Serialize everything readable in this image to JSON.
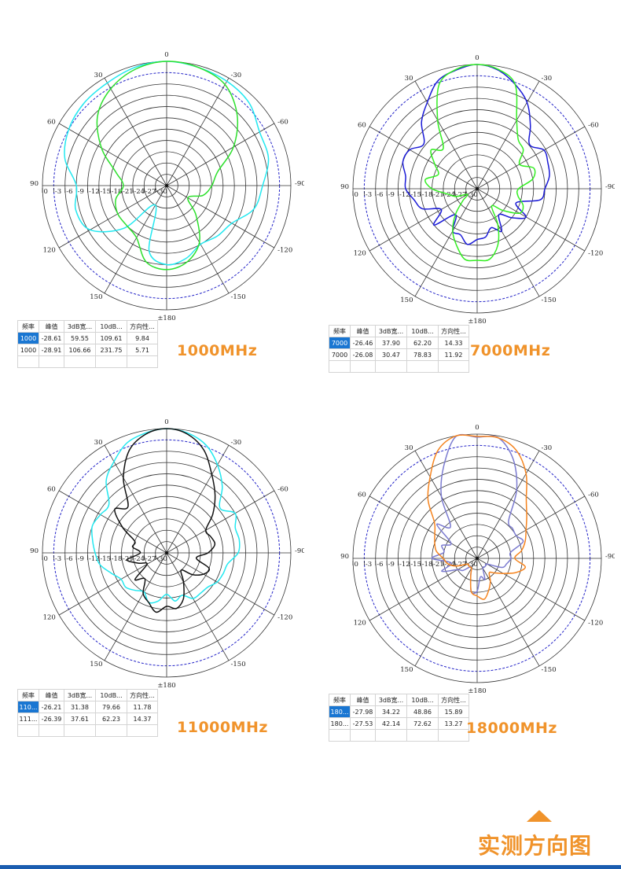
{
  "colors": {
    "accent": "#f0932b",
    "bar": "#1a5db0",
    "grid": "#333333",
    "grid_ref": "#2424c8",
    "selected_cell": "#1976d2"
  },
  "chart_data": [
    {
      "type": "polar",
      "title": "1000MHz",
      "rlim": [
        -33,
        0
      ],
      "angle_step": 15,
      "angle_ticks": [
        0,
        30,
        60,
        90,
        120,
        150,
        180,
        -150,
        -120,
        -90,
        -60,
        -30
      ],
      "angle_labels": [
        "0",
        "30",
        "60",
        "90",
        "120",
        "150",
        "±180",
        "-150",
        "-120",
        "-90",
        "-60",
        "-30"
      ],
      "radial_ticks": [
        0,
        -3,
        -6,
        -9,
        -12,
        -15,
        -18,
        -21,
        -24,
        -27,
        -30
      ],
      "radial_labels": [
        "0",
        "-3",
        "-6",
        "-9",
        "-12",
        "-15",
        "-18",
        "-21",
        "-24",
        "-27",
        "-30"
      ],
      "series": [
        {
          "color": "#22e8f0",
          "values": [
            0,
            -0.5,
            -1.5,
            -2,
            -3,
            -5,
            -9,
            -8,
            -9.5,
            -17,
            -27,
            -15,
            -12,
            -13,
            -15,
            -14,
            -13,
            -9,
            -7.5,
            -5,
            -4.5,
            -2,
            -1,
            -0.5
          ]
        },
        {
          "color": "#2de02d",
          "values": [
            0,
            -1,
            -3.3,
            -7,
            -13,
            -19,
            -21.5,
            -19,
            -18,
            -18,
            -17,
            -12,
            -10.7,
            -12,
            -15.6,
            -22,
            -26.5,
            -23,
            -21,
            -19,
            -12.5,
            -6.5,
            -2,
            -0.5
          ]
        }
      ]
    },
    {
      "type": "polar",
      "title": "7000MHz",
      "rlim": [
        -33,
        0
      ],
      "angle_step": 10,
      "angle_ticks": [
        0,
        30,
        60,
        90,
        120,
        150,
        180,
        -150,
        -120,
        -90,
        -60,
        -30
      ],
      "angle_labels": [
        "0",
        "30",
        "60",
        "90",
        "120",
        "150",
        "±180",
        "-150",
        "-120",
        "-90",
        "-60",
        "-30"
      ],
      "radial_ticks": [
        0,
        -3,
        -6,
        -9,
        -12,
        -15,
        -18,
        -21,
        -24,
        -27,
        -30
      ],
      "radial_labels": [
        "0",
        "-3",
        "-6",
        "-9",
        "-12",
        "-15",
        "-18",
        "-21",
        "-24",
        "-27",
        "-30"
      ],
      "series": [
        {
          "color": "#1a1ad6",
          "values": [
            0,
            -1,
            -2.5,
            -6.5,
            -10,
            -14.5,
            -12.3,
            -12,
            -13.7,
            -14,
            -16,
            -17.5,
            -22,
            -18,
            -24,
            -20,
            -20,
            -18,
            -19.5,
            -20,
            -22,
            -20,
            -24,
            -21,
            -18,
            -22,
            -16,
            -15,
            -13.5,
            -13,
            -12.5,
            -14.8,
            -11,
            -6.5,
            -3.5,
            -1
          ]
        },
        {
          "color": "#33ee22",
          "values": [
            0,
            -0.8,
            -3.5,
            -12,
            -19,
            -17,
            -20,
            -22,
            -19,
            -21,
            -25,
            -27,
            -30,
            -28,
            -24,
            -20,
            -17,
            -14,
            -14,
            -14,
            -17,
            -22,
            -27,
            -24,
            -20,
            -20,
            -22,
            -22,
            -18,
            -17,
            -20,
            -17,
            -16,
            -12,
            -3.5,
            -0.8
          ]
        }
      ]
    },
    {
      "type": "polar",
      "title": "11000MHz",
      "rlim": [
        -33,
        0
      ],
      "angle_step": 10,
      "angle_ticks": [
        0,
        30,
        60,
        90,
        120,
        150,
        180,
        -150,
        -120,
        -90,
        -60,
        -30
      ],
      "angle_labels": [
        "0",
        "30",
        "60",
        "90",
        "120",
        "150",
        "±180",
        "-150",
        "-120",
        "-90",
        "-60",
        "-30"
      ],
      "radial_ticks": [
        0,
        -3,
        -6,
        -9,
        -12,
        -15,
        -18,
        -21,
        -24,
        -27,
        -30
      ],
      "radial_labels": [
        "0",
        "-3",
        "-6",
        "-9",
        "-12",
        "-15",
        "-18",
        "-21",
        "-24",
        "-27",
        "-30"
      ],
      "series": [
        {
          "color": "#22e8f0",
          "values": [
            0,
            -0.7,
            -2,
            -5,
            -8,
            -13,
            -12.7,
            -12,
            -13,
            -14,
            -15,
            -17.3,
            -19,
            -18.8,
            -20,
            -21,
            -19,
            -20,
            -22,
            -20,
            -21,
            -19,
            -19,
            -18.8,
            -17.5,
            -17,
            -16.5,
            -14,
            -13.4,
            -13.6,
            -12,
            -14.5,
            -10,
            -6,
            -2.5,
            -0.7
          ]
        },
        {
          "color": "#111111",
          "values": [
            0,
            -1,
            -4,
            -10,
            -17,
            -15,
            -19.5,
            -24,
            -23.8,
            -26,
            -22.3,
            -25,
            -27,
            -22,
            -24,
            -20.5,
            -19,
            -17,
            -18.8,
            -18,
            -20,
            -24,
            -27,
            -24,
            -21.7,
            -21,
            -25,
            -22,
            -20,
            -20.5,
            -21,
            -17,
            -13,
            -9,
            -4,
            -1
          ]
        }
      ]
    },
    {
      "type": "polar",
      "title": "18000MHz",
      "rlim": [
        -33,
        0
      ],
      "angle_step": 10,
      "angle_ticks": [
        0,
        30,
        60,
        90,
        120,
        150,
        180,
        -150,
        -120,
        -90,
        -60,
        -30
      ],
      "angle_labels": [
        "0",
        "30",
        "60",
        "90",
        "120",
        "150",
        "±180",
        "-150",
        "-120",
        "-90",
        "-60",
        "-30"
      ],
      "radial_ticks": [
        0,
        -3,
        -6,
        -9,
        -12,
        -15,
        -18,
        -21,
        -24,
        -27,
        -30
      ],
      "radial_labels": [
        "0",
        "-3",
        "-6",
        "-9",
        "-12",
        "-15",
        "-18",
        "-21",
        "-24",
        "-27",
        "-30"
      ],
      "series": [
        {
          "color": "#7b7bd0",
          "values": [
            -0.8,
            -0.2,
            -7,
            -14,
            -22,
            -19,
            -25,
            -23,
            -24,
            -21,
            -26,
            -23,
            -27,
            -28,
            -30,
            -30,
            -28,
            -24,
            -24.3,
            -28,
            -27,
            -30,
            -30,
            -30,
            -30,
            -26,
            -25,
            -24,
            -24,
            -20,
            -21,
            -20.7,
            -20,
            -12,
            -5,
            -0.5
          ]
        },
        {
          "color": "#f5841f",
          "values": [
            -0.6,
            0,
            -2.5,
            -8,
            -12.7,
            -18.2,
            -20,
            -21,
            -22,
            -24,
            -25,
            -27,
            -30,
            -30,
            -30,
            -30,
            -28,
            -24,
            -23,
            -22,
            -24,
            -26,
            -28,
            -27,
            -25,
            -22,
            -20,
            -23,
            -21,
            -19.4,
            -18,
            -15.8,
            -12.7,
            -7,
            -2.5,
            -0.5
          ]
        }
      ]
    }
  ],
  "tables": [
    {
      "headers": [
        "频率",
        "峰值",
        "3dB宽...",
        "10dB...",
        "方向性..."
      ],
      "rows": [
        [
          "1000",
          "-28.61",
          "59.55",
          "109.61",
          "9.84"
        ],
        [
          "1000",
          "-28.91",
          "106.66",
          "231.75",
          "5.71"
        ]
      ],
      "freq_label": "1000MHz"
    },
    {
      "headers": [
        "频率",
        "峰值",
        "3dB宽...",
        "10dB...",
        "方向性..."
      ],
      "rows": [
        [
          "7000",
          "-26.46",
          "37.90",
          "62.20",
          "14.33"
        ],
        [
          "7000",
          "-26.08",
          "30.47",
          "78.83",
          "11.92"
        ]
      ],
      "freq_label": "7000MHz"
    },
    {
      "headers": [
        "频率",
        "峰值",
        "3dB宽...",
        "10dB...",
        "方向性..."
      ],
      "rows": [
        [
          "110...",
          "-26.21",
          "31.38",
          "79.66",
          "11.78"
        ],
        [
          "111...",
          "-26.39",
          "37.61",
          "62.23",
          "14.37"
        ]
      ],
      "freq_label": "11000MHz"
    },
    {
      "headers": [
        "频率",
        "峰值",
        "3dB宽...",
        "10dB...",
        "方向性..."
      ],
      "rows": [
        [
          "180...",
          "-27.98",
          "34.22",
          "48.86",
          "15.89"
        ],
        [
          "180...",
          "-27.53",
          "42.14",
          "72.62",
          "13.27"
        ]
      ],
      "freq_label": "18000MHz"
    }
  ],
  "footer": {
    "title": "实测方向图",
    "icon": "triangle-up-icon"
  }
}
